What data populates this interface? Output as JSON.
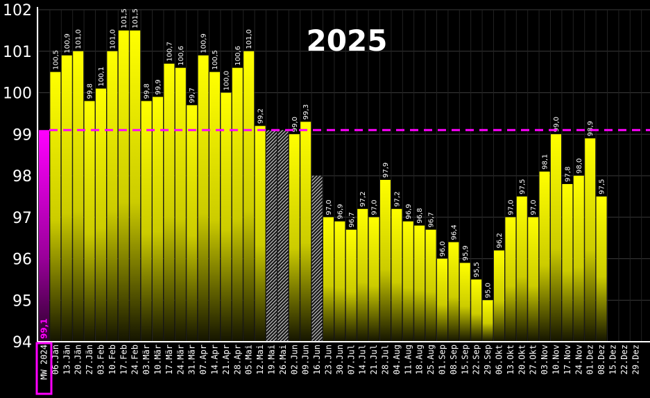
{
  "chart_data": {
    "type": "bar",
    "title": "2025",
    "ylim": [
      94,
      102
    ],
    "yticks": [
      "94",
      "95",
      "96",
      "97",
      "98",
      "99",
      "100",
      "101",
      "102"
    ],
    "grid": true,
    "reference": {
      "category": "MW 2024",
      "value": 99.1,
      "label": "99,1",
      "color": "#ff00ff",
      "line_style": "dashed"
    },
    "categories": [
      "06.Jän",
      "13.Jän",
      "20.Jän",
      "27.Jän",
      "03.Feb",
      "10.Feb",
      "17.Feb",
      "24.Feb",
      "03.Mär",
      "10.Mär",
      "17.Mär",
      "24.Mär",
      "31.Mär",
      "07.Apr",
      "14.Apr",
      "21.Apr",
      "28.Apr",
      "05.Mai",
      "12.Mai",
      "19.Mai",
      "26.Mai",
      "02.Jun",
      "09.Jun",
      "16.Jun",
      "23.Jun",
      "30.Jun",
      "07.Jul",
      "14.Jul",
      "21.Jul",
      "28.Jul",
      "04.Aug",
      "11.Aug",
      "18.Aug",
      "25.Aug",
      "01.Sep",
      "08.Sep",
      "15.Sep",
      "22.Sep",
      "29.Sep",
      "06.Okt",
      "13.Okt",
      "20.Okt",
      "27.Okt",
      "03.Nov",
      "10.Nov",
      "17.Nov",
      "24.Nov",
      "01.Dez",
      "08.Dez",
      "15.Dez",
      "22.Dez",
      "29.Dez"
    ],
    "values": [
      100.5,
      100.9,
      101.0,
      99.8,
      100.1,
      101.0,
      101.5,
      101.5,
      99.8,
      99.9,
      100.7,
      100.6,
      99.7,
      100.9,
      100.5,
      100.0,
      100.6,
      101.0,
      99.2,
      null,
      null,
      99.0,
      99.3,
      null,
      97.0,
      96.9,
      96.7,
      97.2,
      97.0,
      97.9,
      97.2,
      96.9,
      96.8,
      96.7,
      96.0,
      96.4,
      95.9,
      95.5,
      95.0,
      96.2,
      97.0,
      97.5,
      97.0,
      98.1,
      99.0,
      97.8,
      98.0,
      98.9,
      97.5,
      null,
      null,
      null
    ],
    "value_labels": [
      "100,5",
      "100,9",
      "101,0",
      "99,8",
      "100,1",
      "101,0",
      "101,5",
      "101,5",
      "99,8",
      "99,9",
      "100,7",
      "100,6",
      "99,7",
      "100,9",
      "100,5",
      "100,0",
      "100,6",
      "101,0",
      "99,2",
      "",
      "",
      "99,0",
      "99,3",
      "",
      "97,0",
      "96,9",
      "96,7",
      "97,2",
      "97,0",
      "97,9",
      "97,2",
      "96,9",
      "96,8",
      "96,7",
      "96,0",
      "96,4",
      "95,9",
      "95,5",
      "95,0",
      "96,2",
      "97,0",
      "97,5",
      "97,0",
      "98,1",
      "99,0",
      "97,8",
      "98,0",
      "98,9",
      "97,5",
      "",
      "",
      ""
    ],
    "hatched": [
      {
        "category": "19.Mai",
        "value": 99.1
      },
      {
        "category": "26.Mai",
        "value": 99.1
      },
      {
        "category": "16.Jun",
        "value": 98.0
      }
    ],
    "colors": {
      "bar_top": "#ffff00",
      "bar_bottom": "#141400",
      "reference": "#ff00ff",
      "grid": "#3a3a3a",
      "background": "#000000",
      "text": "#ffffff"
    }
  }
}
